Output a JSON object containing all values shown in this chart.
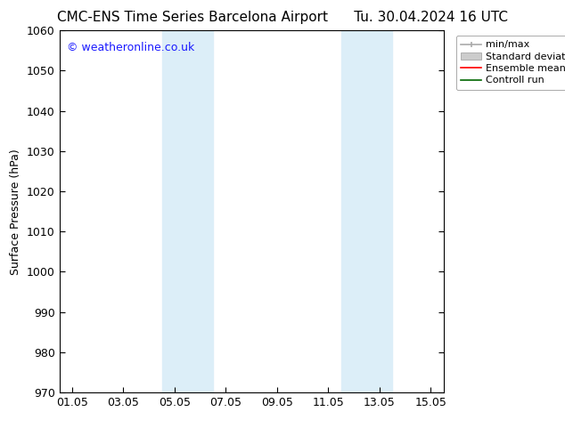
{
  "title": "CMC-ENS Time Series Barcelona Airport      Tu. 30.04.2024 16 UTC",
  "ylabel": "Surface Pressure (hPa)",
  "ylim": [
    970,
    1060
  ],
  "yticks": [
    970,
    980,
    990,
    1000,
    1010,
    1020,
    1030,
    1040,
    1050,
    1060
  ],
  "xtick_labels": [
    "01.05",
    "03.05",
    "05.05",
    "07.05",
    "09.05",
    "11.05",
    "13.05",
    "15.05"
  ],
  "xtick_positions": [
    0,
    2,
    4,
    6,
    8,
    10,
    12,
    14
  ],
  "xlim": [
    -0.5,
    14.5
  ],
  "shaded_bands": [
    {
      "x_start": 3.5,
      "x_end": 5.5,
      "color": "#dceef8"
    },
    {
      "x_start": 10.5,
      "x_end": 12.5,
      "color": "#dceef8"
    }
  ],
  "watermark": "© weatheronline.co.uk",
  "watermark_color": "#1a1aff",
  "background_color": "#ffffff",
  "title_fontsize": 11,
  "label_fontsize": 9,
  "tick_fontsize": 9
}
